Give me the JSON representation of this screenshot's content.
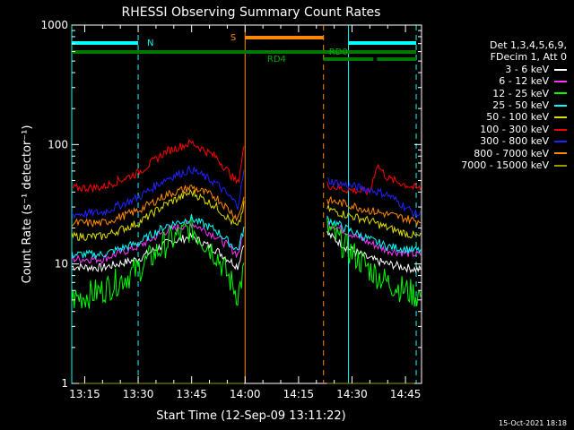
{
  "chart_data": {
    "type": "line",
    "title": "RHESSI Observing Summary Count Rates",
    "xlabel": "Start Time (12-Sep-09 13:11:22)",
    "ylabel": "Count Rate (s⁻¹ detector⁻¹)",
    "yscale": "log",
    "ylim": [
      1,
      1000
    ],
    "xlim": [
      "13:11:22",
      "14:49:30"
    ],
    "y_ticks": [
      "1",
      "10",
      "100",
      "1000"
    ],
    "x_ticks": [
      "13:15",
      "13:30",
      "13:45",
      "14:00",
      "14:15",
      "14:30",
      "14:45"
    ],
    "grid": false,
    "legend_position": "right",
    "legend_header": [
      "Det 1,3,4,5,6,9,",
      "FDecim 1, Att 0"
    ],
    "series": [
      {
        "name": "3 - 6 keV",
        "color": "#ffffff",
        "x": [
          "13:11",
          "13:20",
          "13:30",
          "13:38",
          "13:45",
          "13:52",
          "13:58",
          "14:00",
          "14:23",
          "14:28",
          "14:35",
          "14:40",
          "14:48"
        ],
        "values": [
          9.5,
          9.3,
          11,
          15,
          17,
          13,
          9.5,
          17,
          18,
          14,
          11,
          10,
          9
        ]
      },
      {
        "name": "6 - 12 keV",
        "color": "#ff33ff",
        "x": [
          "13:11",
          "13:20",
          "13:30",
          "13:38",
          "13:45",
          "13:52",
          "13:58",
          "14:00",
          "14:23",
          "14:28",
          "14:35",
          "14:40",
          "14:48"
        ],
        "values": [
          11,
          11,
          14,
          19,
          22,
          17,
          12,
          20,
          22,
          19,
          15,
          13,
          12
        ]
      },
      {
        "name": "12 - 25 keV",
        "color": "#00ff00",
        "x": [
          "13:11",
          "13:20",
          "13:30",
          "13:38",
          "13:45",
          "13:52",
          "13:58",
          "14:00",
          "14:23",
          "14:28",
          "14:35",
          "14:40",
          "14:48"
        ],
        "values": [
          5,
          6,
          9,
          15,
          20,
          12,
          5.5,
          10,
          20,
          14,
          9,
          7,
          5.5
        ]
      },
      {
        "name": "25 - 50 keV",
        "color": "#00ffff",
        "x": [
          "13:11",
          "13:20",
          "13:30",
          "13:38",
          "13:45",
          "13:52",
          "13:58",
          "14:00",
          "14:23",
          "14:28",
          "14:35",
          "14:40",
          "14:48"
        ],
        "values": [
          12,
          12,
          15,
          21,
          24,
          19,
          13,
          22,
          24,
          20,
          16,
          14,
          13
        ]
      },
      {
        "name": "50 - 100 keV",
        "color": "#dddd00",
        "x": [
          "13:11",
          "13:20",
          "13:30",
          "13:38",
          "13:45",
          "13:52",
          "13:58",
          "14:00",
          "14:23",
          "14:28",
          "14:35",
          "14:40",
          "14:48"
        ],
        "values": [
          17,
          17,
          22,
          32,
          40,
          30,
          20,
          34,
          29,
          26,
          23,
          20,
          17
        ]
      },
      {
        "name": "100 - 300 keV",
        "color": "#ff0000",
        "x": [
          "13:11",
          "13:20",
          "13:30",
          "13:38",
          "13:45",
          "13:52",
          "13:58",
          "14:00",
          "14:23",
          "14:28",
          "14:35",
          "14:37",
          "14:40",
          "14:48"
        ],
        "values": [
          43,
          44,
          58,
          88,
          104,
          78,
          47,
          112,
          46,
          42,
          40,
          68,
          52,
          43
        ]
      },
      {
        "name": "300 - 800 keV",
        "color": "#2222ff",
        "x": [
          "13:11",
          "13:20",
          "13:30",
          "13:38",
          "13:45",
          "13:52",
          "13:58",
          "14:00",
          "14:23",
          "14:28",
          "14:35",
          "14:40",
          "14:48"
        ],
        "values": [
          26,
          27,
          36,
          52,
          62,
          47,
          31,
          68,
          50,
          46,
          42,
          38,
          26
        ]
      },
      {
        "name": "800 - 7000 keV",
        "color": "#ff8800",
        "x": [
          "13:11",
          "13:20",
          "13:30",
          "13:38",
          "13:45",
          "13:52",
          "13:58",
          "14:00",
          "14:23",
          "14:28",
          "14:35",
          "14:40",
          "14:48"
        ],
        "values": [
          22,
          22,
          28,
          38,
          44,
          36,
          24,
          40,
          34,
          32,
          28,
          26,
          23
        ]
      },
      {
        "name": "7000 - 15000 keV",
        "color": "#999900",
        "x": [
          "13:11",
          "13:58",
          "14:00",
          "14:23",
          "14:48"
        ],
        "values": [
          1,
          1,
          1,
          1,
          1
        ]
      }
    ],
    "annotations": [
      {
        "label": "N",
        "color": "#00ffff",
        "time": "13:30"
      },
      {
        "label": "S",
        "color": "#ff8800",
        "time": "14:00"
      },
      {
        "label": "RD0",
        "color": "#00aa00",
        "time": "14:21"
      },
      {
        "label": "RD4",
        "color": "#00aa00",
        "time": "14:14"
      }
    ],
    "time_markers": [
      {
        "time": "13:11:22",
        "color": "#00ffff",
        "style": "solid"
      },
      {
        "time": "13:30",
        "color": "#00ffff",
        "style": "dashed"
      },
      {
        "time": "14:00",
        "color": "#ff8800",
        "style": "solid"
      },
      {
        "time": "14:22",
        "color": "#ff8800",
        "style": "dashed"
      },
      {
        "time": "14:29",
        "color": "#00ffff",
        "style": "solid"
      },
      {
        "time": "14:48",
        "color": "#00ffff",
        "style": "dashed"
      }
    ],
    "flag_bars": [
      {
        "name": "night",
        "color": "#00ffff",
        "ranges": [
          [
            "13:11:22",
            "13:30"
          ],
          [
            "14:29",
            "14:48"
          ]
        ]
      },
      {
        "name": "saa",
        "color": "#ff8800",
        "ranges": [
          [
            "14:00",
            "14:22"
          ]
        ]
      },
      {
        "name": "decimation-long",
        "color": "#007700",
        "ranges": [
          [
            "13:11:22",
            "14:48"
          ]
        ]
      },
      {
        "name": "decimation-short",
        "color": "#007700",
        "ranges": [
          [
            "14:22",
            "14:36"
          ],
          [
            "14:37",
            "14:48"
          ]
        ]
      }
    ]
  },
  "timestamp": "15-Oct-2021 18:18"
}
